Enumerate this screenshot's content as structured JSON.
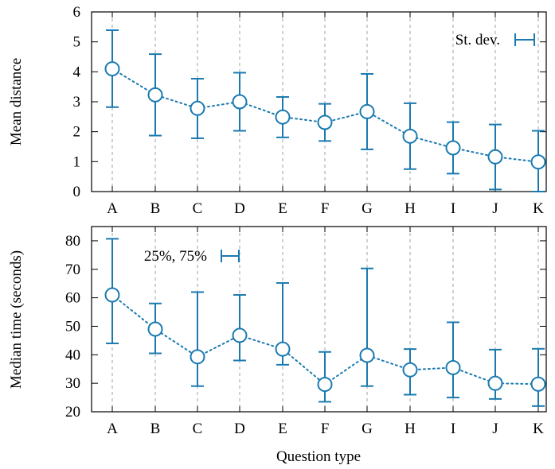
{
  "colors": {
    "series": "#1a7ab0",
    "axis": "#000000",
    "grid": "#a0a0a0"
  },
  "chart_data": [
    {
      "type": "line",
      "categories": [
        "A",
        "B",
        "C",
        "D",
        "E",
        "F",
        "G",
        "H",
        "I",
        "J",
        "K"
      ],
      "ylabel": "Mean distance",
      "xlabel": "",
      "ylim": [
        0,
        6
      ],
      "yticks": [
        0,
        1,
        2,
        3,
        4,
        5,
        6
      ],
      "grid": "vertical dashed",
      "legend": {
        "label": "St. dev.",
        "placement": "top-right"
      },
      "series": [
        {
          "values": [
            4.1,
            3.23,
            2.78,
            3.0,
            2.49,
            2.31,
            2.67,
            1.85,
            1.46,
            1.16,
            0.99
          ],
          "err_low": [
            2.82,
            1.87,
            1.78,
            2.03,
            1.81,
            1.69,
            1.41,
            0.75,
            0.6,
            0.07,
            0.0
          ],
          "err_high": [
            5.39,
            4.59,
            3.77,
            3.97,
            3.16,
            2.93,
            3.93,
            2.95,
            2.32,
            2.24,
            2.03
          ]
        }
      ]
    },
    {
      "type": "line",
      "categories": [
        "A",
        "B",
        "C",
        "D",
        "E",
        "F",
        "G",
        "H",
        "I",
        "J",
        "K"
      ],
      "ylabel": "Median time (seconds)",
      "xlabel": "Question type",
      "ylim": [
        20,
        85
      ],
      "yticks": [
        20,
        30,
        40,
        50,
        60,
        70,
        80
      ],
      "grid": "vertical dashed",
      "legend": {
        "label": "25%, 75%",
        "placement": "top-left"
      },
      "series": [
        {
          "values": [
            61,
            49,
            39.3,
            46.8,
            42,
            29.6,
            39.8,
            34.7,
            35.5,
            30,
            29.7
          ],
          "err_low": [
            44,
            40.5,
            29,
            38,
            36.5,
            23.5,
            29,
            26,
            25,
            24.5,
            22
          ],
          "err_high": [
            80.7,
            58,
            62,
            61,
            65.2,
            41,
            70.3,
            42,
            51.4,
            41.8,
            42.1
          ]
        }
      ]
    }
  ]
}
